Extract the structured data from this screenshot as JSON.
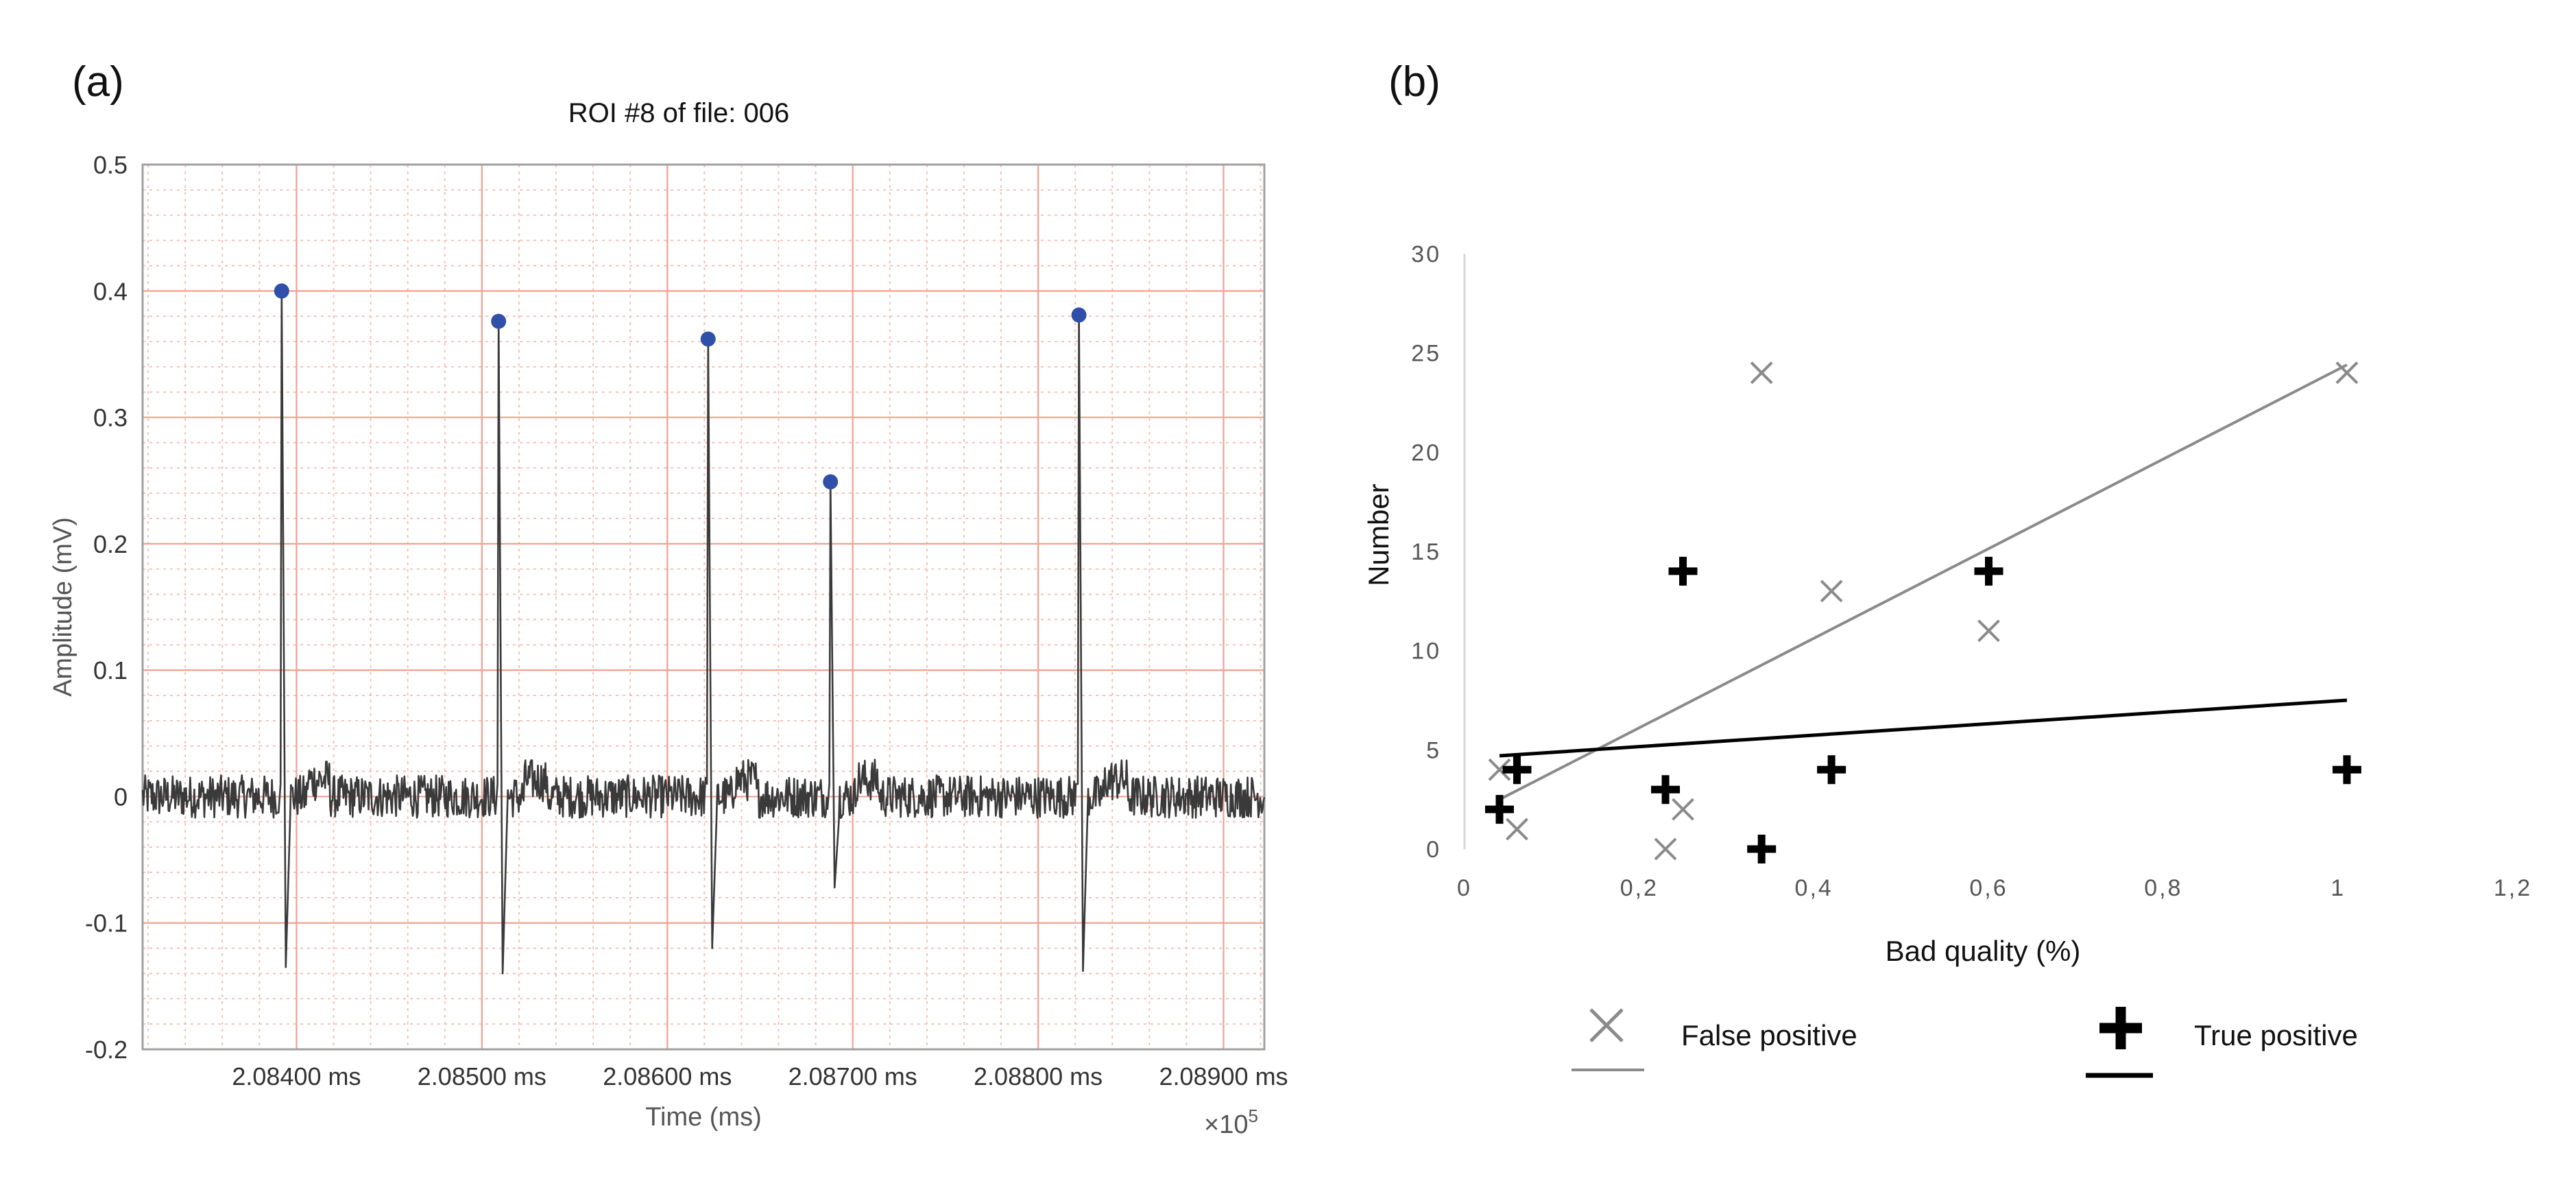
{
  "chart_data": [
    {
      "panel_label": "(a)",
      "type": "line",
      "title": "ROI #8 of file: 006",
      "xlabel": "Time (ms)",
      "ylabel": "Amplitude (mV)",
      "x_exponent_label": "×10",
      "x_exponent_power": "5",
      "grid": "ecg-paper",
      "xlim": [
        2.08317,
        2.08922
      ],
      "ylim": [
        -0.2,
        0.5
      ],
      "x_ticks": [
        2.084,
        2.085,
        2.086,
        2.087,
        2.088,
        2.089
      ],
      "x_tick_labels": [
        "2.08400 ms",
        "2.08500 ms",
        "2.08600 ms",
        "2.08700 ms",
        "2.08800 ms",
        "2.08900 ms"
      ],
      "y_ticks": [
        -0.2,
        -0.1,
        0,
        0.1,
        0.2,
        0.3,
        0.4,
        0.5
      ],
      "y_tick_labels": [
        "-0.2",
        "-0.1",
        "0",
        "0.1",
        "0.2",
        "0.3",
        "0.4",
        "0.5"
      ],
      "r_peaks": [
        {
          "x": 2.08392,
          "y": 0.4,
          "trough": -0.135
        },
        {
          "x": 2.08509,
          "y": 0.376,
          "trough": -0.14
        },
        {
          "x": 2.08622,
          "y": 0.362,
          "trough": -0.12
        },
        {
          "x": 2.08688,
          "y": 0.249,
          "trough": -0.072
        },
        {
          "x": 2.08822,
          "y": 0.381,
          "trough": -0.138
        }
      ],
      "colors": {
        "signal": "#3a3a3a",
        "peaks": "#2f4fa8",
        "grid_major": "#f2a08f",
        "grid_minor": "#f6bcae",
        "frame": "#a0a0a0"
      }
    },
    {
      "panel_label": "(b)",
      "type": "scatter",
      "xlabel": "Bad quality (%)",
      "ylabel": "Number",
      "xlim": [
        0,
        1.2
      ],
      "ylim": [
        0,
        30
      ],
      "x_ticks": [
        0,
        0.2,
        0.4,
        0.6,
        0.8,
        1,
        1.2
      ],
      "x_tick_labels": [
        "0",
        "0,2",
        "0,4",
        "0,6",
        "0,8",
        "1",
        "1,2"
      ],
      "y_ticks": [
        0,
        5,
        10,
        15,
        20,
        25,
        30
      ],
      "y_tick_labels": [
        "0",
        "5",
        "10",
        "15",
        "20",
        "25",
        "30"
      ],
      "series": [
        {
          "name": "False positive",
          "marker": "x",
          "color": "#8a8a8a",
          "points": [
            [
              0.04,
              4
            ],
            [
              0.06,
              1
            ],
            [
              0.23,
              0
            ],
            [
              0.25,
              2
            ],
            [
              0.34,
              24
            ],
            [
              0.42,
              13
            ],
            [
              0.6,
              11
            ],
            [
              1.01,
              24
            ]
          ],
          "trendline": [
            [
              0.04,
              2.5
            ],
            [
              1.01,
              24.4
            ]
          ]
        },
        {
          "name": "True positive",
          "marker": "plus",
          "color": "#000000",
          "points": [
            [
              0.04,
              2
            ],
            [
              0.06,
              4
            ],
            [
              0.23,
              3
            ],
            [
              0.25,
              14
            ],
            [
              0.34,
              0
            ],
            [
              0.42,
              4
            ],
            [
              0.6,
              14
            ],
            [
              1.01,
              4
            ]
          ],
          "trendline": [
            [
              0.04,
              4.7
            ],
            [
              1.01,
              7.5
            ]
          ]
        }
      ],
      "legend": "bottom"
    }
  ]
}
